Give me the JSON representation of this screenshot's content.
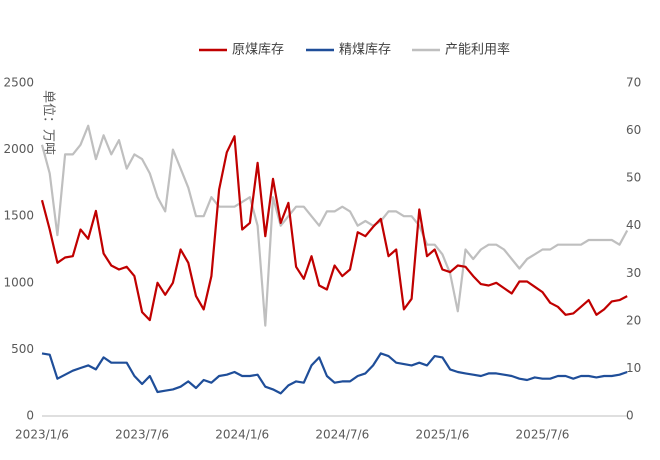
{
  "chart_data": {
    "type": "line",
    "y_label": "单位：万吨",
    "categories": [
      "2023/1/6",
      null,
      null,
      null,
      null,
      null,
      null,
      null,
      null,
      null,
      null,
      null,
      null,
      "2023/7/6",
      null,
      null,
      null,
      null,
      null,
      null,
      null,
      null,
      null,
      null,
      null,
      null,
      "2024/1/6",
      null,
      null,
      null,
      null,
      null,
      null,
      null,
      null,
      null,
      null,
      null,
      null,
      "2024/7/6",
      null,
      null,
      null,
      null,
      null,
      null,
      null,
      null,
      null,
      null,
      null,
      null,
      "2025/1/6",
      null,
      null,
      null,
      null,
      null,
      null,
      null,
      null,
      null,
      null,
      null,
      null,
      "2025/7/6",
      null,
      null,
      null,
      null,
      null,
      null,
      null,
      null,
      null,
      null,
      null
    ],
    "series": [
      {
        "name": "原煤库存",
        "color": "#c00000",
        "axis": "y",
        "values": [
          1620,
          1400,
          1150,
          1190,
          1200,
          1400,
          1330,
          1540,
          1220,
          1130,
          1100,
          1120,
          1050,
          780,
          720,
          1000,
          910,
          1000,
          1250,
          1150,
          900,
          800,
          1050,
          1700,
          1980,
          2100,
          1400,
          1450,
          1900,
          1350,
          1780,
          1450,
          1600,
          1120,
          1030,
          1200,
          980,
          950,
          1130,
          1050,
          1100,
          1380,
          1350,
          1420,
          1480,
          1200,
          1250,
          800,
          880,
          1550,
          1200,
          1250,
          1100,
          1080,
          1130,
          1120,
          1050,
          990,
          980,
          1000,
          960,
          920,
          1010,
          1010,
          970,
          930,
          850,
          820,
          760,
          770,
          820,
          870,
          760,
          800,
          860,
          870,
          900
        ]
      },
      {
        "name": "精煤库存",
        "color": "#1f4e99",
        "axis": "y",
        "values": [
          470,
          460,
          280,
          310,
          340,
          360,
          380,
          350,
          440,
          400,
          400,
          400,
          300,
          240,
          300,
          180,
          190,
          200,
          220,
          260,
          210,
          270,
          250,
          300,
          310,
          330,
          300,
          300,
          310,
          220,
          200,
          170,
          230,
          260,
          250,
          380,
          440,
          300,
          250,
          260,
          260,
          300,
          320,
          380,
          470,
          450,
          400,
          390,
          380,
          400,
          380,
          450,
          440,
          350,
          330,
          320,
          310,
          300,
          320,
          320,
          310,
          300,
          280,
          270,
          290,
          280,
          280,
          300,
          300,
          280,
          300,
          300,
          290,
          300,
          300,
          310,
          330
        ]
      },
      {
        "name": "产能利用率",
        "color": "#bfbfbf",
        "axis": "y2",
        "values": [
          57,
          51,
          38,
          55,
          55,
          57,
          61,
          54,
          59,
          55,
          58,
          52,
          55,
          54,
          51,
          46,
          43,
          56,
          52,
          48,
          42,
          42,
          46,
          44,
          44,
          44,
          45,
          46,
          40,
          19,
          46,
          40,
          42,
          44,
          44,
          42,
          40,
          43,
          43,
          44,
          43,
          40,
          41,
          40,
          41,
          43,
          43,
          42,
          42,
          40,
          36,
          36,
          34,
          30,
          22,
          35,
          33,
          35,
          36,
          36,
          35,
          33,
          31,
          33,
          34,
          35,
          35,
          36,
          36,
          36,
          36,
          37,
          37,
          37,
          37,
          36,
          39
        ]
      }
    ],
    "ylim": [
      0,
      2500
    ],
    "yticks": [
      0,
      500,
      1000,
      1500,
      2000,
      2500
    ],
    "y2lim": [
      0,
      70
    ],
    "y2ticks": [
      0,
      10,
      20,
      30,
      40,
      50,
      60,
      70
    ],
    "legend": "top"
  }
}
